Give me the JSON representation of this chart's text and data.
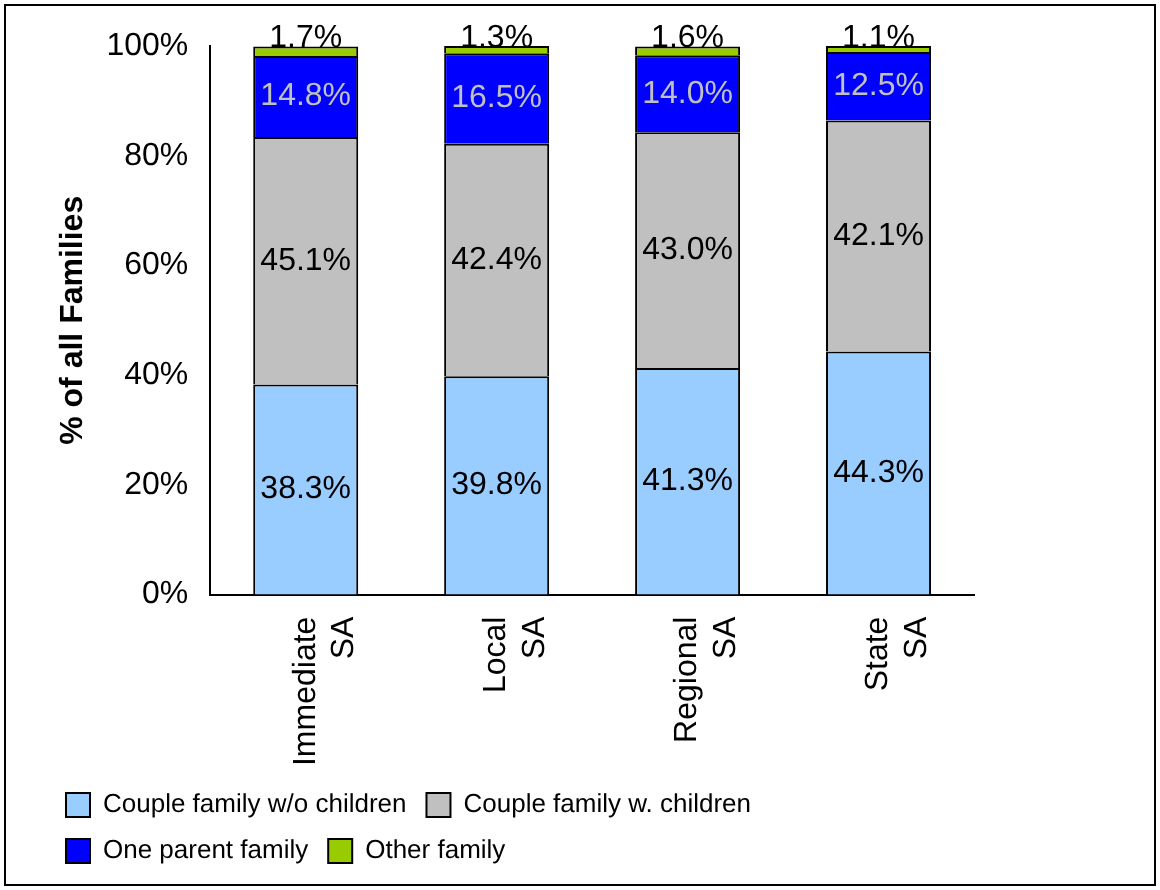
{
  "chart_data": {
    "type": "bar",
    "stacked": true,
    "ylabel": "% of all Families",
    "categories": [
      "Immediate SA",
      "Local SA",
      "Regional SA",
      "State SA"
    ],
    "series": [
      {
        "name": "Couple family w/o children",
        "color": "#99ccff",
        "values": [
          38.3,
          39.8,
          41.3,
          44.3
        ],
        "value_labels": [
          "38.3%",
          "39.8%",
          "41.3%",
          "44.3%"
        ]
      },
      {
        "name": "Couple family w. children",
        "color": "#c0c0c0",
        "values": [
          45.1,
          42.4,
          43.0,
          42.1
        ],
        "value_labels": [
          "45.1%",
          "42.4%",
          "43.0%",
          "42.1%"
        ]
      },
      {
        "name": "One parent family",
        "color": "#0000ff",
        "values": [
          14.8,
          16.5,
          14.0,
          12.5
        ],
        "value_labels": [
          "14.8%",
          "16.5%",
          "14.0%",
          "12.5%"
        ]
      },
      {
        "name": "Other family",
        "color": "#99cc00",
        "values": [
          1.7,
          1.3,
          1.6,
          1.1
        ],
        "value_labels": [
          "1.7%",
          "1.3%",
          "1.6%",
          "1.1%"
        ]
      }
    ],
    "ylim": [
      0,
      100
    ],
    "yticks": [
      {
        "value": 0,
        "label": "0%"
      },
      {
        "value": 20,
        "label": "20%"
      },
      {
        "value": 40,
        "label": "40%"
      },
      {
        "value": 60,
        "label": "60%"
      },
      {
        "value": 80,
        "label": "80%"
      },
      {
        "value": 100,
        "label": "100%"
      }
    ],
    "grid": false,
    "legend": "bottom"
  }
}
